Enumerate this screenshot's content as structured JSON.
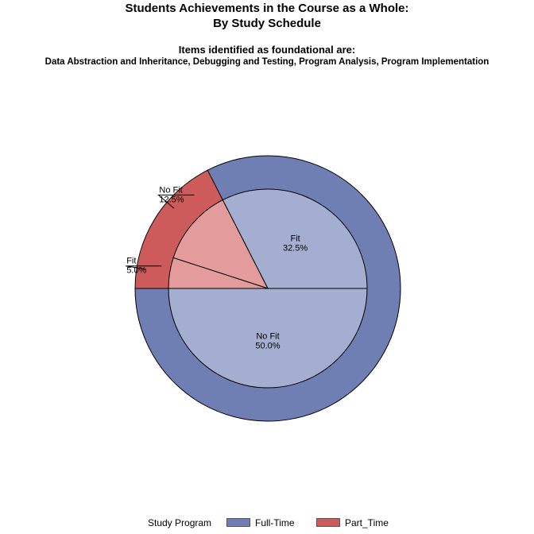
{
  "title": {
    "line1": "Students Achievements in the Course as a Whole:",
    "line2": "By Study Schedule",
    "line3": "Items identified as foundational are:",
    "line4": "Data Abstraction and Inheritance, Debugging and Testing, Program Analysis, Program Implementation"
  },
  "chart_data": {
    "type": "pie",
    "inner_ring": [
      {
        "label": "No Fit",
        "value": 50.0,
        "pct_text": "50.0%",
        "group": "Full-Time",
        "color": "#a4aed0"
      },
      {
        "label": "Fit",
        "value": 32.5,
        "pct_text": "32.5%",
        "group": "Full-Time",
        "color": "#a4aed0"
      },
      {
        "label": "No Fit",
        "value": 12.5,
        "pct_text": "12.5%",
        "group": "Part_Time",
        "color": "#e39b9b"
      },
      {
        "label": "Fit",
        "value": 5.0,
        "pct_text": "5.0%",
        "group": "Part_Time",
        "color": "#e39b9b"
      }
    ],
    "outer_ring": [
      {
        "group": "Full-Time",
        "value": 82.5,
        "color": "#6f7fb4"
      },
      {
        "group": "Part_Time",
        "value": 17.5,
        "color": "#cd5b5b"
      }
    ],
    "legend": {
      "title": "Study Program",
      "entries": [
        {
          "label": "Full-Time",
          "color": "#6f7fb4"
        },
        {
          "label": "Part_Time",
          "color": "#cd5b5b"
        }
      ]
    }
  }
}
